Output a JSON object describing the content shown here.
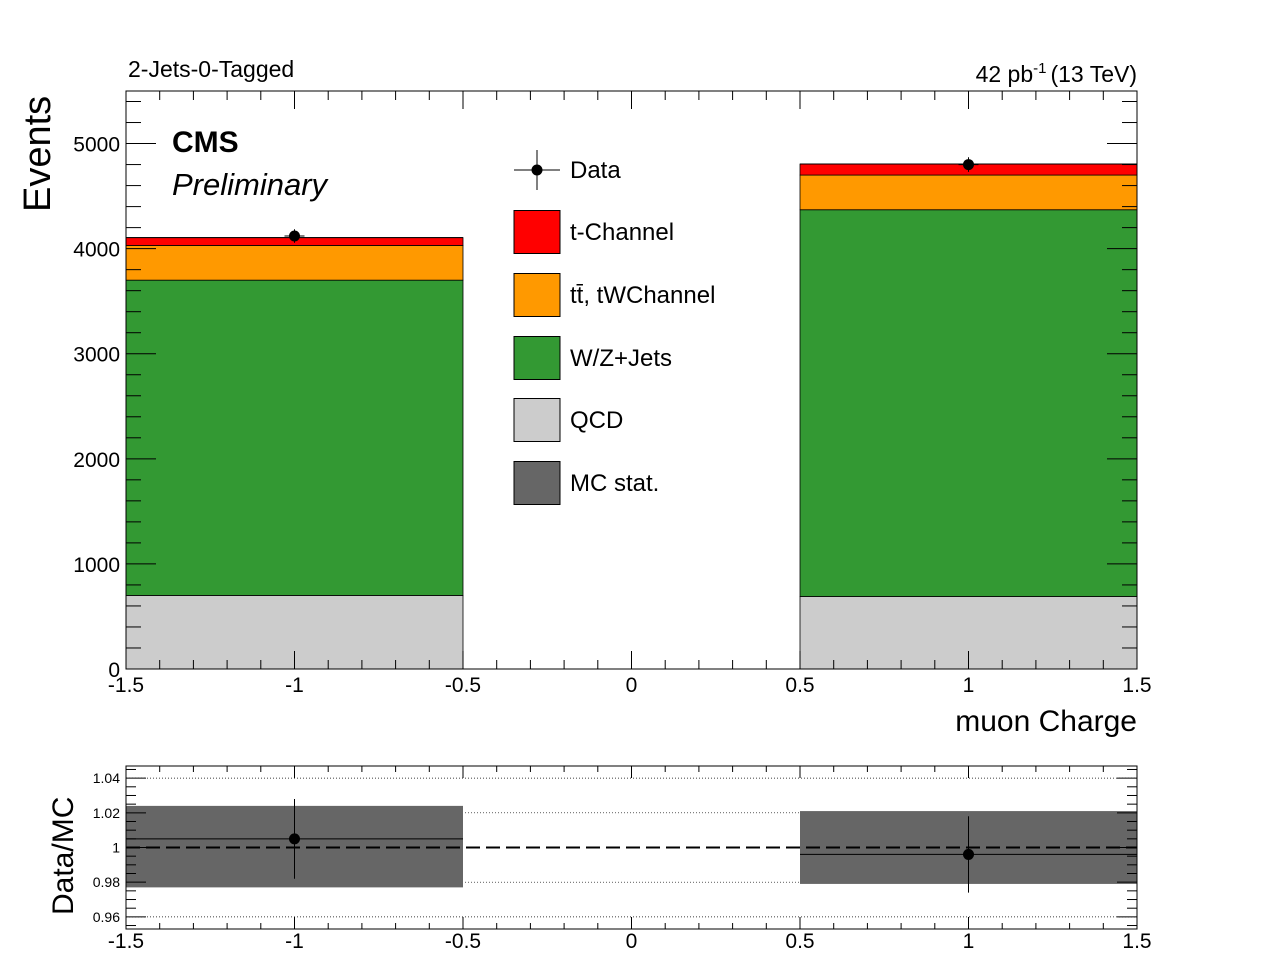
{
  "chart_data": {
    "type": "bar",
    "stacked": true,
    "header": {
      "left": "2-Jets-0-Tagged",
      "lumi": "42 pb",
      "lumi_exp": "-1",
      "energy": "(13 TeV)"
    },
    "labels": {
      "experiment": "CMS",
      "status": "Preliminary"
    },
    "xlabel": "muon Charge",
    "ylabel": "Events",
    "xlim": [
      -1.5,
      1.5
    ],
    "ylim": [
      0,
      5500
    ],
    "xticks": [
      "-1.5",
      "-1",
      "-0.5",
      "0",
      "0.5",
      "1",
      "1.5"
    ],
    "yticks": [
      "0",
      "1000",
      "2000",
      "3000",
      "4000",
      "5000"
    ],
    "bins": [
      {
        "low": -1.5,
        "high": -0.5
      },
      {
        "low": 0.5,
        "high": 1.5
      }
    ],
    "series": [
      {
        "name": "QCD",
        "color": "#cccccc",
        "values": [
          700,
          690
        ]
      },
      {
        "name": "W/Z+Jets",
        "color": "#339933",
        "values": [
          3000,
          3680
        ]
      },
      {
        "name": "tt̄, tWChannel",
        "color": "#ff9900",
        "values": [
          330,
          330
        ]
      },
      {
        "name": "t-Channel",
        "color": "#ff0000",
        "values": [
          75,
          105
        ]
      }
    ],
    "data_points": {
      "name": "Data",
      "x": [
        -1,
        1
      ],
      "y": [
        4120,
        4800
      ],
      "yerr": [
        64,
        69
      ]
    },
    "legend": {
      "placement": "top-center",
      "entries": [
        "Data",
        "t-Channel",
        "tt̄, tWChannel",
        "W/Z+Jets",
        "QCD",
        "MC stat."
      ],
      "mc_stat_color": "#666666"
    },
    "ratio": {
      "ylabel": "Data/MC",
      "ylim": [
        0.953,
        1.047
      ],
      "yticks": [
        "0.96",
        "0.98",
        "1",
        "1.02",
        "1.04"
      ],
      "gridlines": [
        0.96,
        0.98,
        1.0,
        1.02,
        1.04
      ],
      "x": [
        -1,
        1
      ],
      "y": [
        1.005,
        0.996
      ],
      "yerr": [
        0.023,
        0.022
      ],
      "mc_stat_band": [
        {
          "low": -1.5,
          "high": -0.5,
          "down": 0.977,
          "up": 1.024
        },
        {
          "low": 0.5,
          "high": 1.5,
          "down": 0.979,
          "up": 1.021
        }
      ]
    }
  }
}
